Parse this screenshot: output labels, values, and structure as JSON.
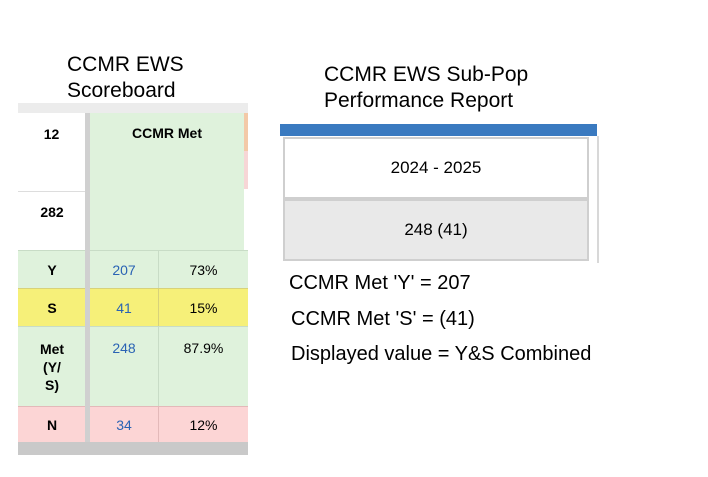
{
  "scoreboard": {
    "title_line1": "CCMR EWS",
    "title_line2": "Scoreboard",
    "header_left_top": "12",
    "header_left_bottom": "282",
    "header_right": "CCMR Met",
    "rows": [
      {
        "label": "Y",
        "count": "207",
        "pct": "73%"
      },
      {
        "label": "S",
        "count": "41",
        "pct": "15%"
      },
      {
        "label_lines": [
          "Met",
          "(Y/",
          "S)"
        ],
        "count": "248",
        "pct": "87.9%"
      },
      {
        "label": "N",
        "count": "34",
        "pct": "12%"
      }
    ]
  },
  "report": {
    "title_line1": "CCMR EWS Sub-Pop",
    "title_line2": "Performance Report",
    "year": "2024 - 2025",
    "value": "248 (41)"
  },
  "notes": {
    "line1": "CCMR Met 'Y' = 207",
    "line2": "CCMR Met 'S' = (41)",
    "line3": "Displayed value = Y&S Combined"
  },
  "colors": {
    "green": "#dff2dc",
    "yellow": "#f6f079",
    "pink": "#fcd5d5",
    "blue_bar": "#3a7ac0",
    "count_text": "#2a63b4"
  }
}
